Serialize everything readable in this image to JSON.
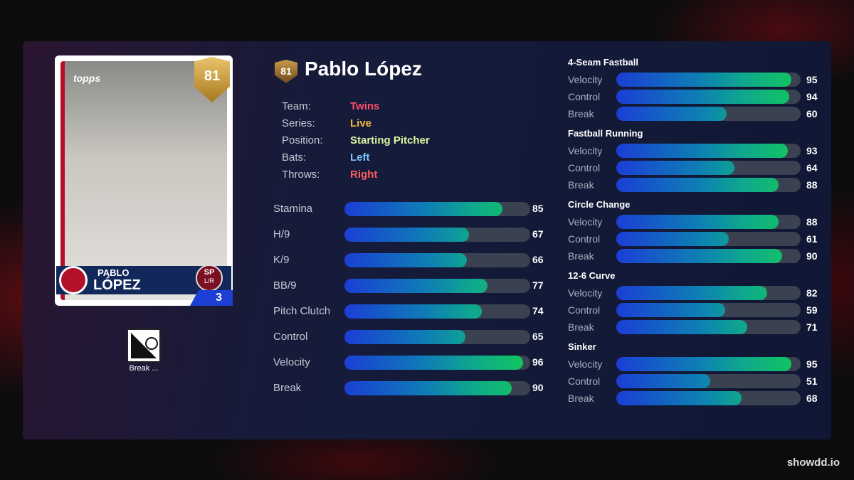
{
  "card": {
    "brand": "topps",
    "rating": 81,
    "first_name": "PABLO",
    "last_name": "LÓPEZ",
    "position": "SP",
    "hands": "L/R",
    "number": 3
  },
  "header": {
    "rating": 81,
    "name": "Pablo López"
  },
  "info": [
    {
      "label": "Team:",
      "value": "Twins",
      "color": "#ff4d6d"
    },
    {
      "label": "Series:",
      "value": "Live",
      "color": "#f5b63a"
    },
    {
      "label": "Position:",
      "value": "Starting Pitcher",
      "color": "#dcf5a0"
    },
    {
      "label": "Bats:",
      "value": "Left",
      "color": "#7cc4ff"
    },
    {
      "label": "Throws:",
      "value": "Right",
      "color": "#ff5b5b"
    }
  ],
  "stats": [
    {
      "label": "Stamina",
      "value": 85
    },
    {
      "label": "H/9",
      "value": 67
    },
    {
      "label": "K/9",
      "value": 66
    },
    {
      "label": "BB/9",
      "value": 77
    },
    {
      "label": "Pitch Clutch",
      "value": 74
    },
    {
      "label": "Control",
      "value": 65
    },
    {
      "label": "Velocity",
      "value": 96
    },
    {
      "label": "Break",
      "value": 90
    }
  ],
  "pitches": [
    {
      "name": "4-Seam Fastball",
      "attributes": [
        {
          "label": "Velocity",
          "value": 95
        },
        {
          "label": "Control",
          "value": 94
        },
        {
          "label": "Break",
          "value": 60
        }
      ]
    },
    {
      "name": "Fastball Running",
      "attributes": [
        {
          "label": "Velocity",
          "value": 93
        },
        {
          "label": "Control",
          "value": 64
        },
        {
          "label": "Break",
          "value": 88
        }
      ]
    },
    {
      "name": "Circle Change",
      "attributes": [
        {
          "label": "Velocity",
          "value": 88
        },
        {
          "label": "Control",
          "value": 61
        },
        {
          "label": "Break",
          "value": 90
        }
      ]
    },
    {
      "name": "12-6 Curve",
      "attributes": [
        {
          "label": "Velocity",
          "value": 82
        },
        {
          "label": "Control",
          "value": 59
        },
        {
          "label": "Break",
          "value": 71
        }
      ]
    },
    {
      "name": "Sinker",
      "attributes": [
        {
          "label": "Velocity",
          "value": 95
        },
        {
          "label": "Control",
          "value": 51
        },
        {
          "label": "Break",
          "value": 68
        }
      ]
    }
  ],
  "icon_label": "Break ...",
  "watermark": "showdd.io"
}
